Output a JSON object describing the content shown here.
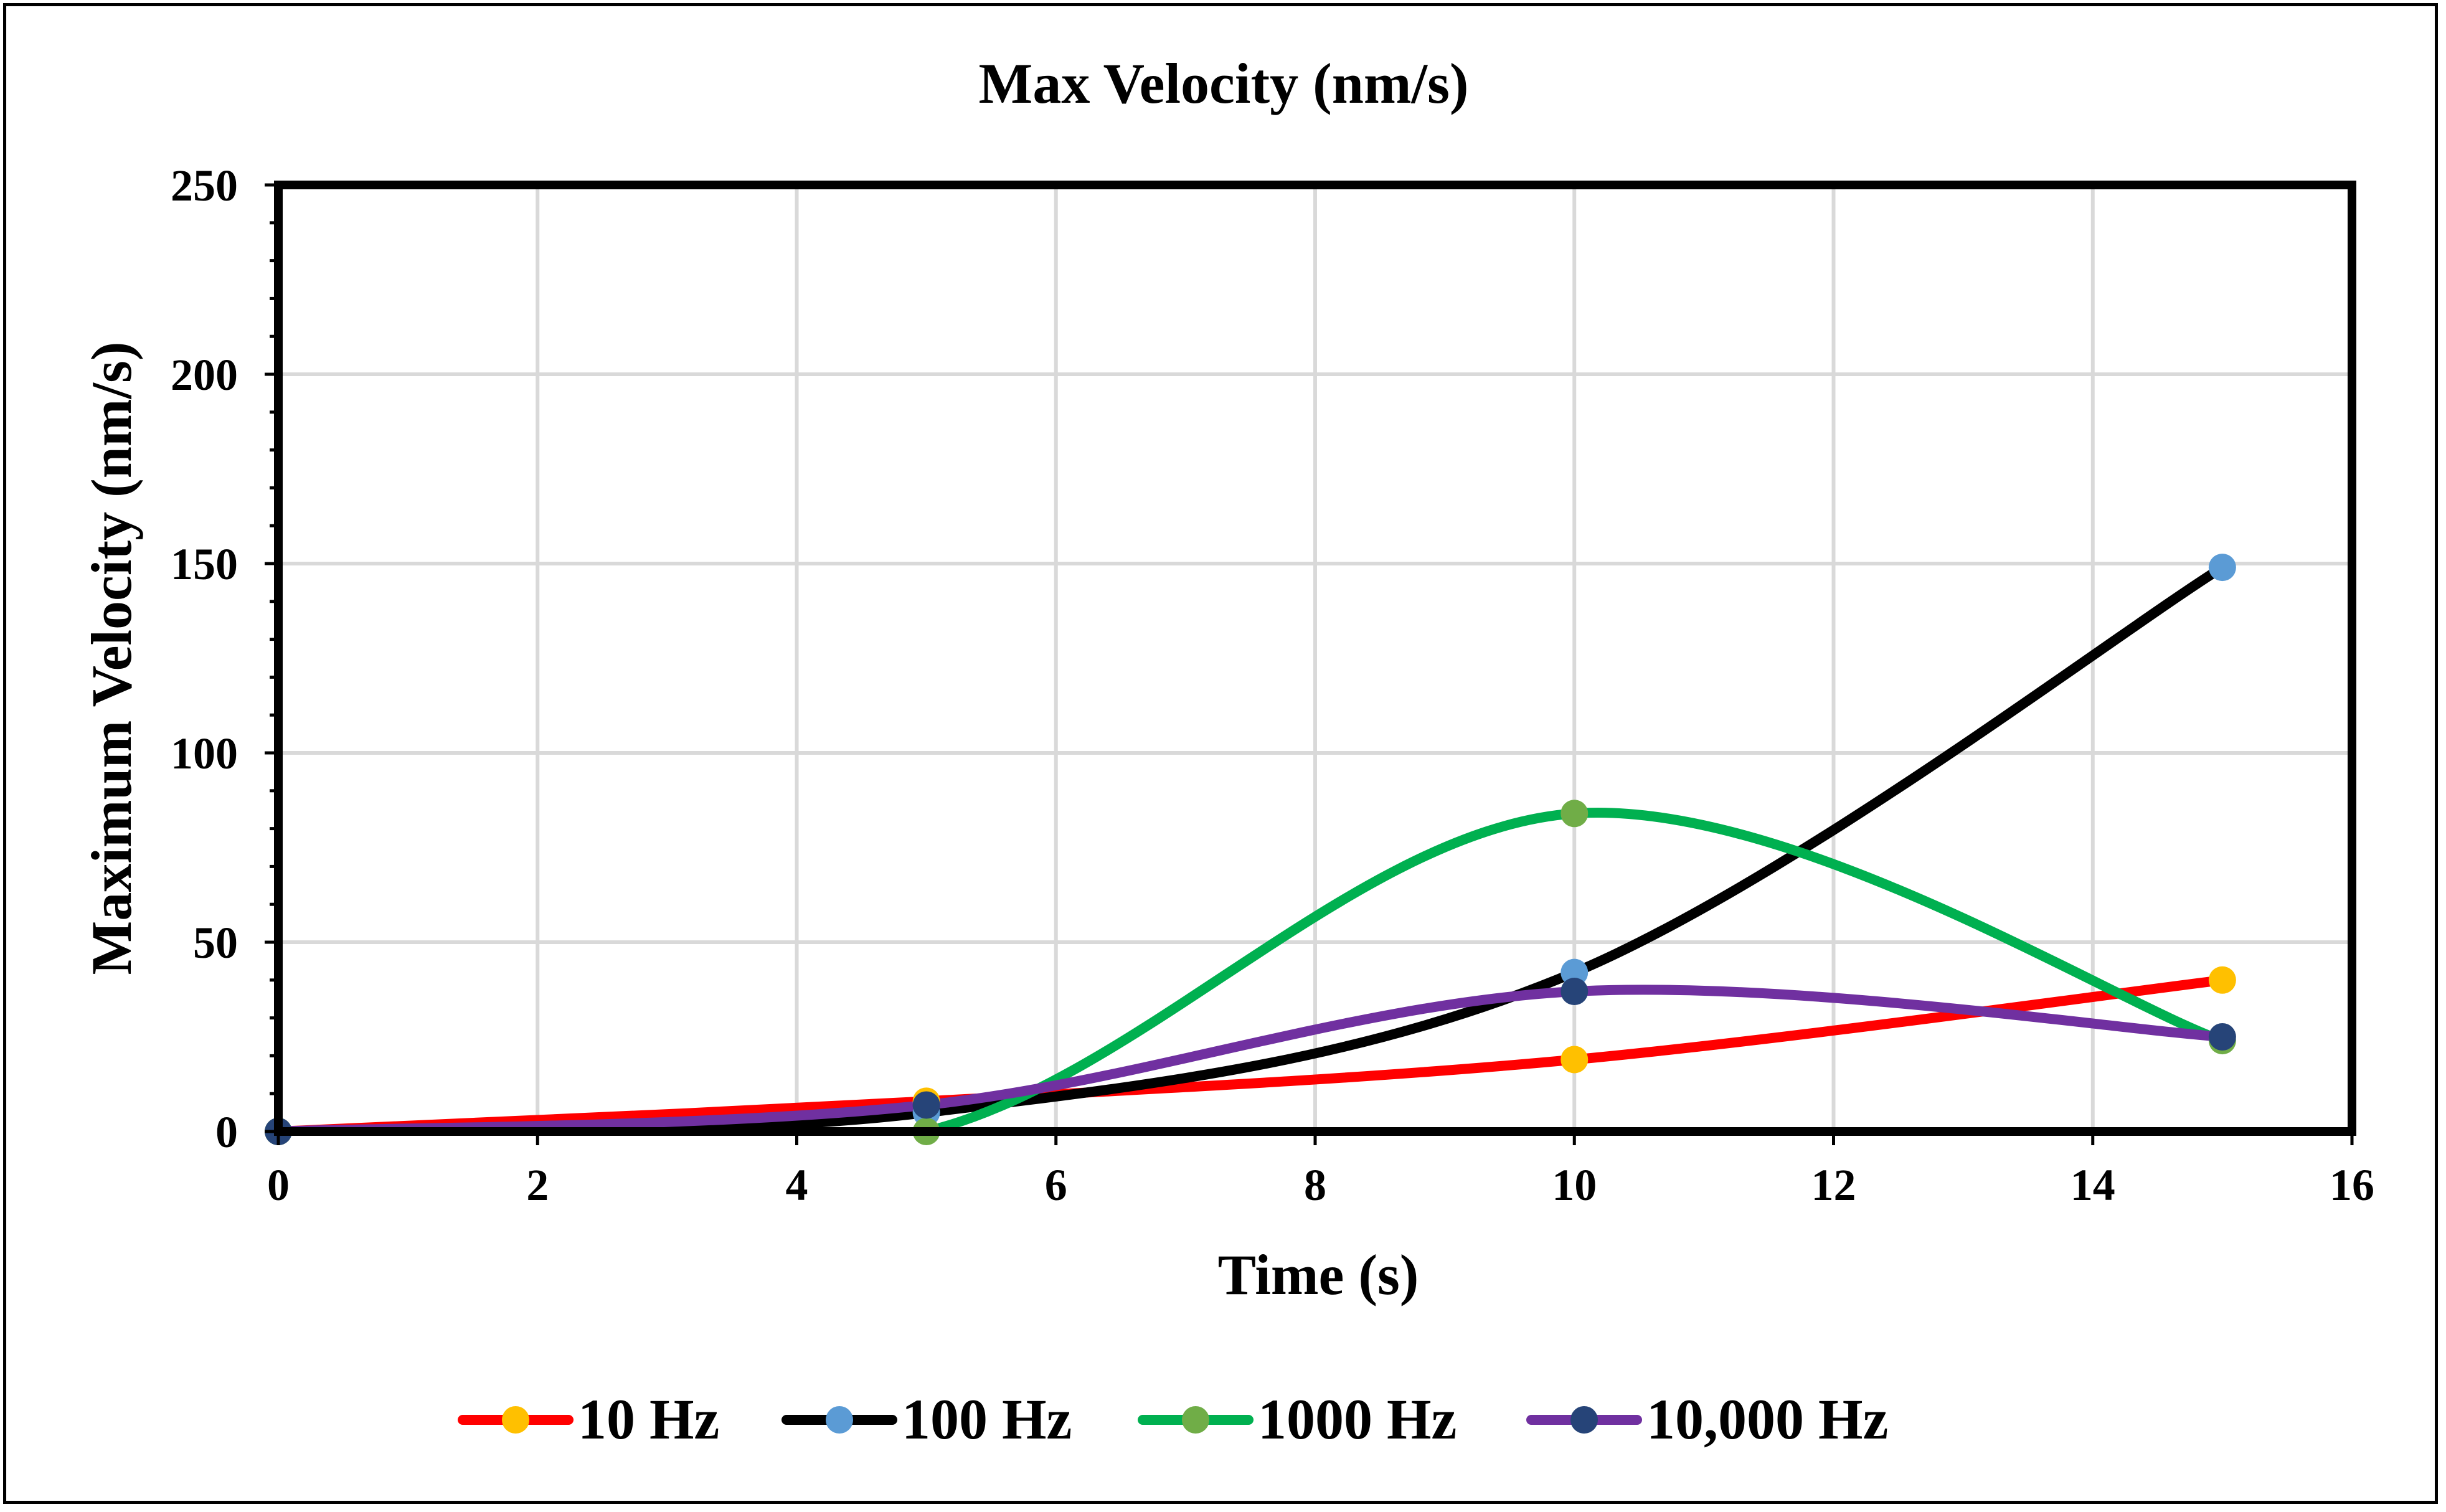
{
  "chart_data": {
    "type": "line",
    "title": "Max Velocity (nm/s)",
    "xlabel": "Time (s)",
    "ylabel": "Maximum Velocity (nm/s)",
    "xlim": [
      0,
      16
    ],
    "ylim": [
      0,
      250
    ],
    "xticks": [
      0,
      2,
      4,
      6,
      8,
      10,
      12,
      14,
      16
    ],
    "yticks": [
      0,
      50,
      100,
      150,
      200,
      250
    ],
    "grid": true,
    "smooth": true,
    "legend_position": "bottom",
    "x": [
      0,
      5,
      10,
      15
    ],
    "series": [
      {
        "name": "10 Hz",
        "values": [
          0,
          8,
          19,
          40
        ],
        "line_color": "#ff0000",
        "marker_color": "#ffc000"
      },
      {
        "name": "100 Hz",
        "values": [
          0,
          5,
          42,
          149
        ],
        "line_color": "#000000",
        "marker_color": "#5b9bd5"
      },
      {
        "name": "1000 Hz",
        "values": [
          0,
          0,
          84,
          24
        ],
        "line_color": "#00b050",
        "marker_color": "#70ad47"
      },
      {
        "name": "10,000 Hz",
        "values": [
          0,
          7,
          37,
          25
        ],
        "line_color": "#7030a0",
        "marker_color": "#264478"
      }
    ]
  }
}
